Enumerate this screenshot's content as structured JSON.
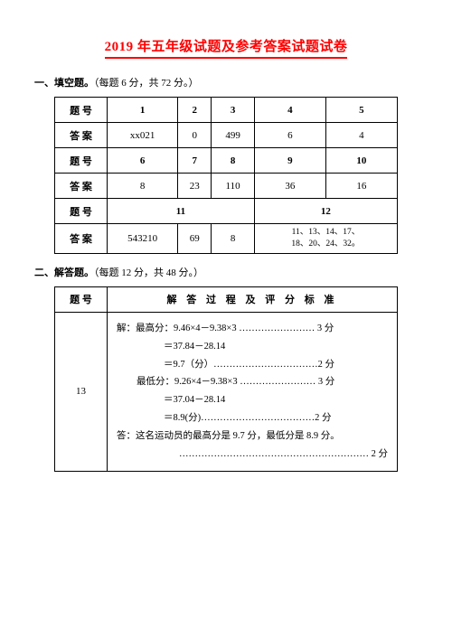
{
  "title": "2019 年五年级试题及参考答案试题试卷",
  "section1": {
    "heading_bold": "一、填空题。",
    "heading_rest": "（每题 6 分，共 72 分。）",
    "label_qnum": "题 号",
    "label_ans": "答 案",
    "row1_nums": [
      "1",
      "2",
      "3",
      "4",
      "5"
    ],
    "row1_ans": [
      "xx021",
      "0",
      "499",
      "6",
      "4"
    ],
    "row2_nums": [
      "6",
      "7",
      "8",
      "9",
      "10"
    ],
    "row2_ans": [
      "8",
      "23",
      "110",
      "36",
      "16"
    ],
    "row3_nums": [
      "11",
      "12"
    ],
    "row3_ans": [
      "543210",
      "69",
      "8"
    ],
    "row3_multi_l1": "11、13、14、17、",
    "row3_multi_l2": "18、20、24、32。"
  },
  "section2": {
    "heading_bold": "二、解答题。",
    "heading_rest": "（每题 12 分，共 48 分。）",
    "col_qnum": "题 号",
    "col_std": "解 答 过 程 及 评 分 标 准",
    "qnum": "13",
    "l1a": "解：最高分：",
    "l1b": "9.46×4－9.38×3",
    "l1d": " …………………… 3 分",
    "l2": "＝37.84－28.14",
    "l3a": "＝9.7（分）",
    "l3d": "……………………………2 分",
    "l4a": "最低分：",
    "l4b": "9.26×4－9.38×3",
    "l4d": " …………………… 3 分",
    "l5": "＝37.04－28.14",
    "l6a": "＝8.9(分)",
    "l6d": "………………………………2 分",
    "l7": "答：这名运动员的最高分是 9.7 分，最低分是 8.9 分。",
    "l8d": "…………………………………………………… 2 分"
  },
  "colors": {
    "title": "#ff0000",
    "border": "#000000",
    "page_bg": "#ffffff",
    "outer_bg": "#808080"
  }
}
